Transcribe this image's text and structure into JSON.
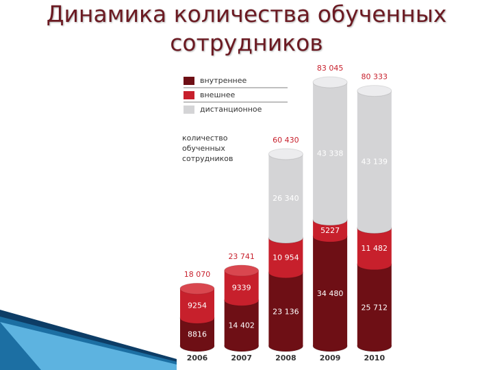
{
  "chart_data": {
    "type": "stacked-cylinder",
    "title": "Динамика количества обученных сотрудников",
    "ylabel_lines": [
      "количество",
      "обученных",
      "сотрудников"
    ],
    "categories": [
      "2006",
      "2007",
      "2008",
      "2009",
      "2010"
    ],
    "series": [
      {
        "name": "внутреннее",
        "color": "#6e0f15",
        "values": [
          8816,
          14402,
          23136,
          34480,
          25712
        ],
        "value_labels": [
          "8816",
          "14 402",
          "23 136",
          "34 480",
          "25 712"
        ]
      },
      {
        "name": "внешнее",
        "color": "#c7202c",
        "values": [
          9254,
          9339,
          10954,
          5227,
          11482
        ],
        "value_labels": [
          "9254",
          "9339",
          "10 954",
          "5227",
          "11 482"
        ]
      },
      {
        "name": "дистанционное",
        "color": "#d4d4d6",
        "values": [
          null,
          null,
          26340,
          43338,
          43139
        ],
        "value_labels": [
          null,
          null,
          "26 340",
          "43 338",
          "43 139"
        ]
      }
    ],
    "totals": [
      18070,
      23741,
      60430,
      83045,
      80333
    ],
    "total_labels": [
      "18 070",
      "23 741",
      "60 430",
      "83 045",
      "80 333"
    ]
  }
}
